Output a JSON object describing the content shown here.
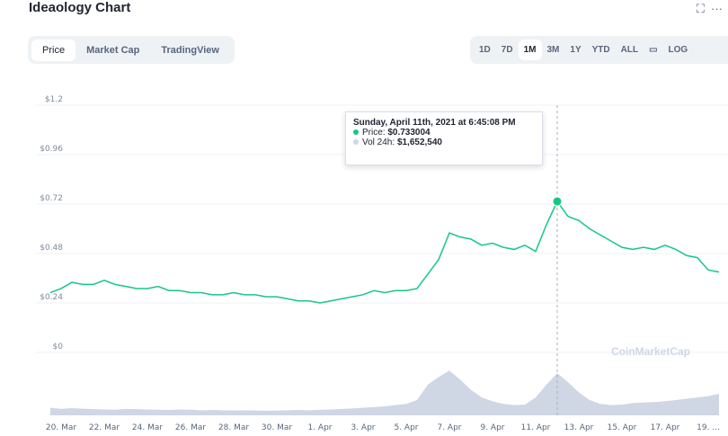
{
  "header": {
    "title": "Ideaology Chart"
  },
  "tabs": [
    "Price",
    "Market Cap",
    "TradingView"
  ],
  "ranges": [
    "1D",
    "7D",
    "1M",
    "3M",
    "1Y",
    "YTD",
    "ALL",
    "LOG"
  ],
  "watermark": "CoinMarketCap",
  "tooltip": {
    "title": "Sunday, April 11th, 2021 at 6:45:08 PM",
    "items": [
      {
        "label": "Price:",
        "value": "$0.733004"
      },
      {
        "label": "Vol 24h:",
        "value": "$1,652,540"
      }
    ]
  },
  "chart_data": {
    "type": "line",
    "categories": [
      null,
      "20. Mar",
      null,
      null,
      null,
      "22. Mar",
      null,
      null,
      null,
      "24. Mar",
      null,
      null,
      null,
      "26. Mar",
      null,
      null,
      null,
      "28. Mar",
      null,
      null,
      null,
      "30. Mar",
      null,
      null,
      null,
      "1. Apr",
      null,
      null,
      null,
      "3. Apr",
      null,
      null,
      null,
      "5. Apr",
      null,
      null,
      null,
      "7. Apr",
      null,
      null,
      null,
      "9. Apr",
      null,
      null,
      null,
      "11. Apr",
      null,
      null,
      null,
      "13. Apr",
      null,
      null,
      null,
      "15. Apr",
      null,
      null,
      null,
      "17. Apr",
      null,
      null,
      null,
      "19. ...",
      null
    ],
    "series": [
      {
        "name": "Price",
        "color": "#16c784",
        "values": [
          0.29,
          0.31,
          0.34,
          0.33,
          0.33,
          0.35,
          0.33,
          0.32,
          0.31,
          0.31,
          0.32,
          0.3,
          0.3,
          0.29,
          0.29,
          0.28,
          0.28,
          0.29,
          0.28,
          0.28,
          0.27,
          0.27,
          0.26,
          0.25,
          0.25,
          0.24,
          0.25,
          0.26,
          0.27,
          0.28,
          0.3,
          0.29,
          0.3,
          0.3,
          0.31,
          0.38,
          0.45,
          0.58,
          0.56,
          0.55,
          0.52,
          0.53,
          0.51,
          0.5,
          0.52,
          0.49,
          0.62,
          0.733,
          0.66,
          0.64,
          0.6,
          0.57,
          0.54,
          0.51,
          0.5,
          0.51,
          0.5,
          0.52,
          0.5,
          0.47,
          0.46,
          0.4,
          0.39
        ]
      },
      {
        "name": "Vol 24h",
        "color": "#cfd6e4",
        "axis": "y2",
        "values": [
          300000,
          250000,
          280000,
          260000,
          240000,
          230000,
          220000,
          250000,
          240000,
          230000,
          220000,
          210000,
          230000,
          220000,
          200000,
          210000,
          200000,
          190000,
          200000,
          190000,
          180000,
          190000,
          200000,
          210000,
          200000,
          220000,
          230000,
          250000,
          270000,
          300000,
          320000,
          350000,
          400000,
          450000,
          600000,
          1200000,
          1500000,
          1750000,
          1400000,
          1000000,
          700000,
          550000,
          450000,
          400000,
          420000,
          700000,
          1200000,
          1652540,
          1300000,
          900000,
          600000,
          450000,
          400000,
          420000,
          480000,
          500000,
          520000,
          550000,
          600000,
          650000,
          700000,
          750000,
          850000
        ]
      }
    ],
    "ylim": [
      0,
      1.2
    ],
    "yticks": [
      {
        "value": 0,
        "label": "$0"
      },
      {
        "value": 0.24,
        "label": "$0.24"
      },
      {
        "value": 0.48,
        "label": "$0.48"
      },
      {
        "value": 0.72,
        "label": "$0.72"
      },
      {
        "value": 0.96,
        "label": "$0.96"
      },
      {
        "value": 1.2,
        "label": "$1.2"
      }
    ],
    "y2lim": [
      0,
      2500000
    ],
    "grid": true
  }
}
